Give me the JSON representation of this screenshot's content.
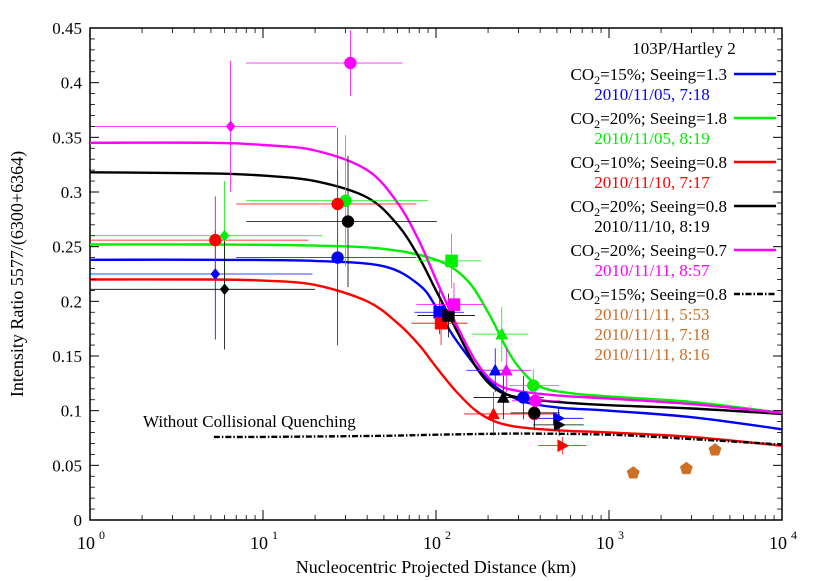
{
  "chart_data": {
    "type": "scatter",
    "title": "103P/Hartley 2",
    "xlabel": "Nucleocentric Projected Distance (km)",
    "ylabel": "Intensity Ratio 5577/(6300+6364)",
    "xscale": "log",
    "xlim": [
      1,
      10000
    ],
    "ylim": [
      0,
      0.45
    ],
    "x_ticks": [
      {
        "base": "10",
        "exp": "0"
      },
      {
        "base": "10",
        "exp": "1"
      },
      {
        "base": "10",
        "exp": "2"
      },
      {
        "base": "10",
        "exp": "3"
      },
      {
        "base": "10",
        "exp": "4"
      }
    ],
    "y_ticks": [
      "0",
      "0.05",
      "0.1",
      "0.15",
      "0.2",
      "0.25",
      "0.3",
      "0.35",
      "0.4",
      "0.45"
    ],
    "y_tick_values": [
      0,
      0.05,
      0.1,
      0.15,
      0.2,
      0.25,
      0.3,
      0.35,
      0.4,
      0.45
    ],
    "grid": false,
    "legend_position": "top-right",
    "annotation": "Without Collisional Quenching",
    "series": [
      {
        "name": "CO2=15%; Seeing=1.3",
        "label_prefix": "CO",
        "label_sub": "2",
        "label_suffix": "=15%; Seeing=1.3",
        "date_labels": [
          "2010/11/05, 7:18"
        ],
        "color": "#0000ff",
        "curve": {
          "x": [
            1,
            5,
            20,
            50,
            80,
            100,
            130,
            200,
            300,
            500,
            1000,
            3000,
            10000
          ],
          "y": [
            0.238,
            0.238,
            0.237,
            0.232,
            0.215,
            0.195,
            0.165,
            0.128,
            0.11,
            0.103,
            0.1,
            0.094,
            0.083
          ]
        },
        "points": [
          {
            "marker": "diamond",
            "x": 5.3,
            "y": 0.225,
            "xerr": [
              4.3,
              14
            ],
            "yerr": [
              0.06,
              0.04
            ]
          },
          {
            "marker": "circle",
            "x": 27,
            "y": 0.24,
            "xerr": [
              20,
              50
            ],
            "yerr": [
              0.08,
              0.08
            ]
          },
          {
            "marker": "square",
            "x": 105,
            "y": 0.19,
            "xerr": [
              30,
              40
            ],
            "yerr": [
              0.02,
              0.02
            ]
          },
          {
            "marker": "triangle-up",
            "x": 220,
            "y": 0.137,
            "xerr": [
              70,
              80
            ],
            "yerr": [
              0.02,
              0.02
            ]
          },
          {
            "marker": "circle",
            "x": 320,
            "y": 0.112,
            "xerr": [
              80,
              100
            ],
            "yerr": [
              0.02,
              0.02
            ]
          },
          {
            "marker": "triangle-right",
            "x": 510,
            "y": 0.093,
            "xerr": [
              150,
              200
            ],
            "yerr": [
              0.01,
              0.01
            ]
          }
        ]
      },
      {
        "name": "CO2=20%; Seeing=1.8",
        "label_prefix": "CO",
        "label_sub": "2",
        "label_suffix": "=20%; Seeing=1.8",
        "date_labels": [
          "2010/11/05, 8:19"
        ],
        "color": "#00ee00",
        "curve": {
          "x": [
            1,
            5,
            20,
            50,
            100,
            150,
            200,
            250,
            300,
            400,
            600,
            1000,
            3000,
            10000
          ],
          "y": [
            0.252,
            0.252,
            0.251,
            0.248,
            0.238,
            0.22,
            0.19,
            0.16,
            0.14,
            0.122,
            0.116,
            0.113,
            0.108,
            0.098
          ]
        },
        "points": [
          {
            "marker": "diamond",
            "x": 6.0,
            "y": 0.26,
            "xerr": [
              5.0,
              16
            ],
            "yerr": [
              0.05,
              0.05
            ]
          },
          {
            "marker": "circle",
            "x": 30,
            "y": 0.292,
            "xerr": [
              22,
              60
            ],
            "yerr": [
              0.06,
              0.06
            ]
          },
          {
            "marker": "square",
            "x": 123,
            "y": 0.237,
            "xerr": [
              45,
              60
            ],
            "yerr": [
              0.025,
              0.025
            ]
          },
          {
            "marker": "triangle-up",
            "x": 240,
            "y": 0.17,
            "xerr": [
              80,
              100
            ],
            "yerr": [
              0.025,
              0.025
            ]
          },
          {
            "marker": "circle",
            "x": 365,
            "y": 0.123,
            "xerr": [
              100,
              150
            ],
            "yerr": [
              0.015,
              0.015
            ]
          }
        ]
      },
      {
        "name": "CO2=10%; Seeing=0.8",
        "label_prefix": "CO",
        "label_sub": "2",
        "label_suffix": "=10%; Seeing=0.8",
        "date_labels": [
          "2010/11/10, 7:17"
        ],
        "color": "#ff0000",
        "curve": {
          "x": [
            1,
            5,
            10,
            20,
            40,
            60,
            80,
            100,
            130,
            170,
            220,
            300,
            500,
            1000,
            3000,
            10000
          ],
          "y": [
            0.22,
            0.22,
            0.219,
            0.215,
            0.2,
            0.18,
            0.16,
            0.14,
            0.118,
            0.1,
            0.09,
            0.085,
            0.082,
            0.08,
            0.076,
            0.068
          ]
        },
        "points": [
          {
            "marker": "circle",
            "x": 5.3,
            "y": 0.256,
            "xerr": [
              4.3,
              13
            ],
            "yerr": [
              0.04,
              0.04
            ]
          },
          {
            "marker": "circle",
            "x": 27,
            "y": 0.289,
            "xerr": [
              20,
              50
            ],
            "yerr": [
              0.07,
              0.07
            ]
          },
          {
            "marker": "square",
            "x": 107,
            "y": 0.18,
            "xerr": [
              35,
              45
            ],
            "yerr": [
              0.02,
              0.02
            ]
          },
          {
            "marker": "triangle-up",
            "x": 215,
            "y": 0.097,
            "xerr": [
              70,
              90
            ],
            "yerr": [
              0.02,
              0.02
            ]
          },
          {
            "marker": "circle",
            "x": 370,
            "y": 0.097,
            "xerr": [
              100,
              130
            ],
            "yerr": [
              0.015,
              0.015
            ]
          },
          {
            "marker": "triangle-right",
            "x": 540,
            "y": 0.068,
            "xerr": [
              150,
              200
            ],
            "yerr": [
              0.008,
              0.008
            ]
          }
        ]
      },
      {
        "name": "CO2=20%; Seeing=0.8",
        "label_prefix": "CO",
        "label_sub": "2",
        "label_suffix": "=20%; Seeing=0.8",
        "date_labels": [
          "2010/11/10, 8:19"
        ],
        "color": "#000000",
        "curve": {
          "x": [
            1,
            5,
            10,
            20,
            40,
            60,
            80,
            100,
            130,
            170,
            220,
            300,
            500,
            1000,
            3000,
            10000
          ],
          "y": [
            0.318,
            0.317,
            0.315,
            0.31,
            0.295,
            0.27,
            0.24,
            0.21,
            0.175,
            0.14,
            0.12,
            0.112,
            0.108,
            0.105,
            0.102,
            0.097
          ]
        },
        "points": [
          {
            "marker": "diamond",
            "x": 6.0,
            "y": 0.211,
            "xerr": [
              5.0,
              14
            ],
            "yerr": [
              0.055,
              0.05
            ]
          },
          {
            "marker": "circle",
            "x": 31,
            "y": 0.273,
            "xerr": [
              23,
              70
            ],
            "yerr": [
              0.06,
              0.06
            ]
          },
          {
            "marker": "square",
            "x": 118,
            "y": 0.187,
            "xerr": [
              40,
              50
            ],
            "yerr": [
              0.02,
              0.02
            ]
          },
          {
            "marker": "triangle-up",
            "x": 245,
            "y": 0.112,
            "xerr": [
              80,
              100
            ],
            "yerr": [
              0.02,
              0.02
            ]
          },
          {
            "marker": "circle",
            "x": 370,
            "y": 0.098,
            "xerr": [
              100,
              150
            ],
            "yerr": [
              0.015,
              0.015
            ]
          },
          {
            "marker": "triangle-right",
            "x": 515,
            "y": 0.087,
            "xerr": [
              150,
              200
            ],
            "yerr": [
              0.01,
              0.01
            ]
          }
        ]
      },
      {
        "name": "CO2=20%; Seeing=0.7",
        "label_prefix": "CO",
        "label_sub": "2",
        "label_suffix": "=20%; Seeing=0.7",
        "date_labels": [
          "2010/11/11, 8:57"
        ],
        "color": "#ff00ff",
        "curve": {
          "x": [
            1,
            5,
            10,
            20,
            40,
            60,
            80,
            100,
            130,
            170,
            220,
            300,
            500,
            1000,
            3000,
            10000
          ],
          "y": [
            0.345,
            0.345,
            0.343,
            0.338,
            0.32,
            0.29,
            0.255,
            0.22,
            0.18,
            0.145,
            0.125,
            0.118,
            0.114,
            0.111,
            0.106,
            0.098
          ]
        },
        "points": [
          {
            "marker": "diamond",
            "x": 6.5,
            "y": 0.36,
            "xerr": [
              5.5,
              20
            ],
            "yerr": [
              0.06,
              0.06
            ]
          },
          {
            "marker": "circle",
            "x": 32,
            "y": 0.418,
            "xerr": [
              24,
              32
            ],
            "yerr": [
              0.03,
              0.03
            ]
          },
          {
            "marker": "square",
            "x": 127,
            "y": 0.197,
            "xerr": [
              50,
              60
            ],
            "yerr": [
              0.02,
              0.02
            ]
          },
          {
            "marker": "triangle-up",
            "x": 255,
            "y": 0.137,
            "xerr": [
              80,
              100
            ],
            "yerr": [
              0.02,
              0.02
            ]
          },
          {
            "marker": "circle",
            "x": 375,
            "y": 0.109,
            "xerr": [
              100,
              150
            ],
            "yerr": [
              0.015,
              0.015
            ]
          }
        ]
      },
      {
        "name": "CO2=15%; Seeing=0.8",
        "label_prefix": "CO",
        "label_sub": "2",
        "label_suffix": "=15%; Seeing=0.8",
        "date_labels": [
          "2010/11/11, 5:53",
          "2010/11/11, 7:18",
          "2010/11/11, 8:16"
        ],
        "color": "#cc6f27",
        "line_color": "#000000",
        "dash": "dash-dot",
        "curve": {
          "x": [
            5.2,
            10,
            50,
            100,
            300,
            1000,
            3000,
            10000
          ],
          "y": [
            0.076,
            0.076,
            0.077,
            0.078,
            0.079,
            0.078,
            0.074,
            0.069
          ]
        },
        "points": [
          {
            "marker": "pentagon",
            "x": 1380,
            "y": 0.043
          },
          {
            "marker": "pentagon",
            "x": 2800,
            "y": 0.047
          },
          {
            "marker": "pentagon",
            "x": 4100,
            "y": 0.064
          }
        ]
      }
    ]
  }
}
